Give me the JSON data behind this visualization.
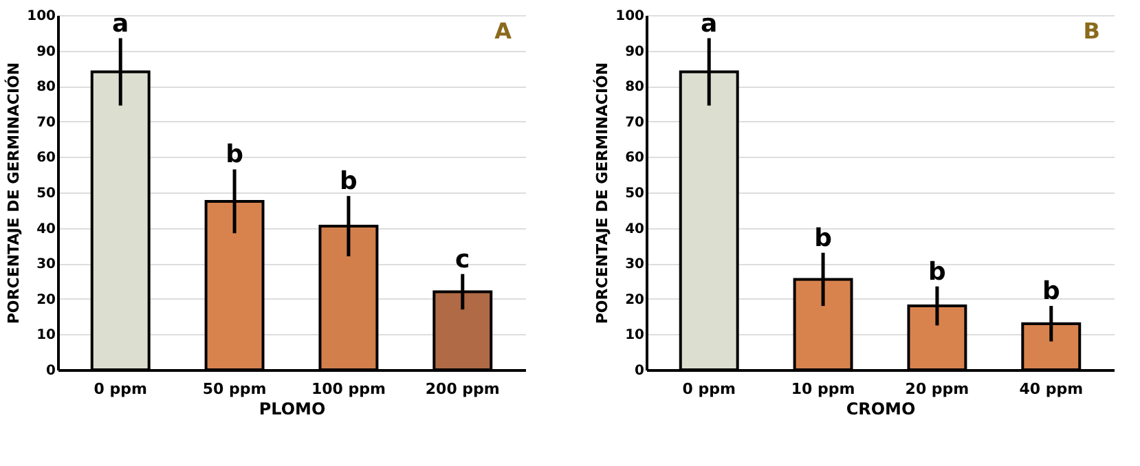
{
  "chart_data": [
    {
      "type": "bar",
      "title": "A",
      "xlabel": "PLOMO",
      "ylabel": "PORCENTAJE DE GERMINACIÓN",
      "categories": [
        "0 ppm",
        "50 ppm",
        "100 ppm",
        "200 ppm"
      ],
      "values": [
        84,
        47.5,
        40.5,
        22
      ],
      "errors": [
        9.5,
        9,
        8.5,
        5
      ],
      "colors": [
        "#dcdfd0",
        "#d8834e",
        "#d27f4b",
        "#b06a45"
      ],
      "ylim": [
        0,
        100
      ],
      "yticks": [
        0,
        10,
        20,
        30,
        40,
        50,
        60,
        70,
        80,
        90,
        100
      ],
      "grid": "y",
      "annotations": [
        {
          "text": "a",
          "x": "0 ppm",
          "y": 93.5
        },
        {
          "text": "b",
          "x": "50 ppm",
          "y": 56.5
        },
        {
          "text": "b",
          "x": "100 ppm",
          "y": 49
        },
        {
          "text": "c",
          "x": "200 ppm",
          "y": 27
        }
      ]
    },
    {
      "type": "bar",
      "title": "B",
      "xlabel": "CROMO",
      "ylabel": "PORCENTAJE DE GERMINACIÓN",
      "categories": [
        "0 ppm",
        "10 ppm",
        "20 ppm",
        "40 ppm"
      ],
      "values": [
        84,
        25.5,
        18,
        13
      ],
      "errors": [
        9.5,
        7.5,
        5.5,
        5
      ],
      "colors": [
        "#dcdfd0",
        "#d8834e",
        "#d8834e",
        "#d8834e"
      ],
      "ylim": [
        0,
        100
      ],
      "yticks": [
        0,
        10,
        20,
        30,
        40,
        50,
        60,
        70,
        80,
        90,
        100
      ],
      "grid": "y",
      "annotations": [
        {
          "text": "a",
          "x": "0 ppm",
          "y": 93.5
        },
        {
          "text": "b",
          "x": "10 ppm",
          "y": 33
        },
        {
          "text": "b",
          "x": "20 ppm",
          "y": 23.5
        },
        {
          "text": "b",
          "x": "40 ppm",
          "y": 18
        }
      ]
    }
  ]
}
